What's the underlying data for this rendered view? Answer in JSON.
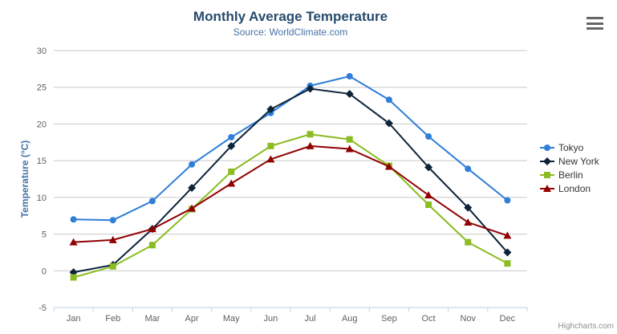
{
  "header": {
    "title": "Monthly Average Temperature",
    "subtitle": "Source: WorldClimate.com"
  },
  "chart_data": {
    "type": "line",
    "title": "Monthly Average Temperature",
    "subtitle": "Source: WorldClimate.com",
    "categories": [
      "Jan",
      "Feb",
      "Mar",
      "Apr",
      "May",
      "Jun",
      "Jul",
      "Aug",
      "Sep",
      "Oct",
      "Nov",
      "Dec"
    ],
    "series": [
      {
        "name": "Tokyo",
        "color": "#2f7ed8",
        "marker": "circle",
        "values": [
          7.0,
          6.9,
          9.5,
          14.5,
          18.2,
          21.5,
          25.2,
          26.5,
          23.3,
          18.3,
          13.9,
          9.6
        ]
      },
      {
        "name": "New York",
        "color": "#0d233a",
        "marker": "diamond",
        "values": [
          -0.2,
          0.8,
          5.7,
          11.3,
          17.0,
          22.0,
          24.8,
          24.1,
          20.1,
          14.1,
          8.6,
          2.5
        ]
      },
      {
        "name": "Berlin",
        "color": "#8bbc21",
        "marker": "square",
        "values": [
          -0.9,
          0.6,
          3.5,
          8.4,
          13.5,
          17.0,
          18.6,
          17.9,
          14.3,
          9.0,
          3.9,
          1.0
        ]
      },
      {
        "name": "London",
        "color": "#910000",
        "marker": "triangle",
        "values": [
          3.9,
          4.2,
          5.7,
          8.5,
          11.9,
          15.2,
          17.0,
          16.6,
          14.2,
          10.3,
          6.6,
          4.8
        ]
      }
    ],
    "xlabel": "",
    "ylabel": "Temperature (°C)",
    "ylim": [
      -5,
      30
    ],
    "ytick_interval": 5,
    "grid": true,
    "legend_position": "right",
    "gridline_color": "#c8c8c8",
    "axis_line_color": "#c0d0e0",
    "tick_label_color": "#606060"
  },
  "credits": {
    "label": "Highcharts.com"
  }
}
